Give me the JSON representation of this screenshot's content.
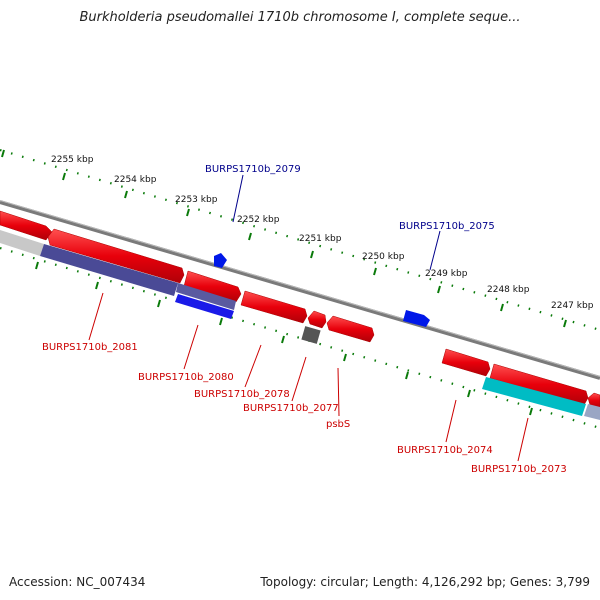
{
  "title": "Burkholderia pseudomallei 1710b chromosome I, complete seque...",
  "footer": {
    "accession": "Accession: NC_007434",
    "topology": "Topology: circular; Length: 4,126,292 bp; Genes: 3,799"
  },
  "colors": {
    "forward_gene": "#e8000b",
    "reverse_gene": "#0018e8",
    "track_purple": "#4a4a96",
    "track_cyan": "#00bcc4",
    "track_gray": "#888888",
    "backbone": "#7a7a7a",
    "tick": "#0a7a0a",
    "label_red": "#cc0000",
    "label_blue": "#00008b"
  },
  "scale": {
    "ticks": [
      {
        "label": "2255 kbp"
      },
      {
        "label": "2254 kbp"
      },
      {
        "label": "2253 kbp"
      },
      {
        "label": "2252 kbp"
      },
      {
        "label": "2251 kbp"
      },
      {
        "label": "2250 kbp"
      },
      {
        "label": "2249 kbp"
      },
      {
        "label": "2248 kbp"
      },
      {
        "label": "2247 kbp"
      }
    ]
  },
  "gene_labels": {
    "burps2079": "BURPS1710b_2079",
    "burps2075": "BURPS1710b_2075",
    "burps2081": "BURPS1710b_2081",
    "burps2080": "BURPS1710b_2080",
    "burps2078": "BURPS1710b_2078",
    "burps2077": "BURPS1710b_2077",
    "psbs": "psbS",
    "burps2074": "BURPS1710b_2074",
    "burps2073": "BURPS1710b_2073"
  }
}
